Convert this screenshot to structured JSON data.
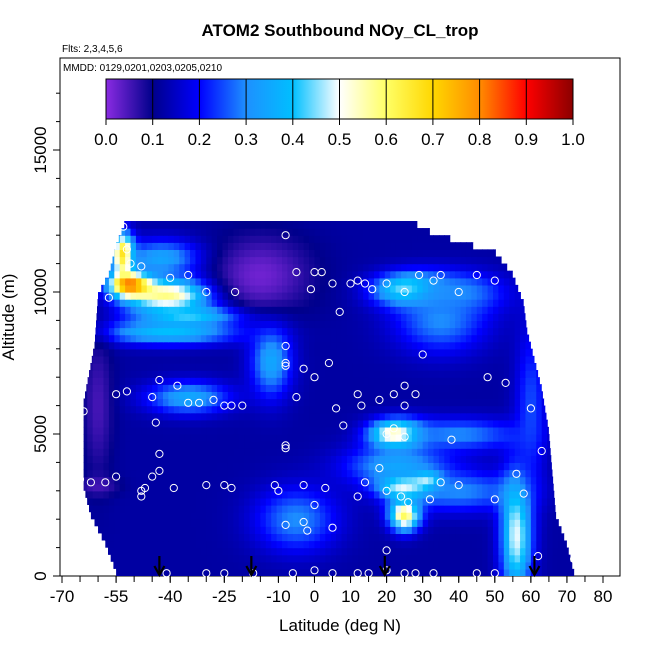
{
  "chart_data": {
    "type": "heatmap",
    "title": "ATOM2 Southbound NOy_CL_trop",
    "subtitle_lines": [
      "Flts: 2,3,4,5,6",
      "MMDD: 0129,0201,0203,0205,0210"
    ],
    "xlabel": "Latitude (deg N)",
    "ylabel": "Altitude (m)",
    "xlim": [
      -70,
      85
    ],
    "ylim": [
      0,
      17500
    ],
    "x_ticks": [
      -70,
      -55,
      -40,
      -25,
      -10,
      0,
      10,
      20,
      30,
      40,
      50,
      60,
      70,
      80
    ],
    "x_tick_labels": [
      "-70",
      "-55",
      "-40",
      "-25",
      "-10",
      "0",
      "10",
      "20",
      "30",
      "40",
      "50",
      "60",
      "70",
      "80"
    ],
    "y_ticks": [
      0,
      5000,
      10000,
      15000
    ],
    "y_tick_labels": [
      "0",
      "5000",
      "10000",
      "15000"
    ],
    "colorbar": {
      "range": [
        0.0,
        1.0
      ],
      "ticks": [
        0.0,
        0.1,
        0.2,
        0.3,
        0.4,
        0.5,
        0.6,
        0.7,
        0.8,
        0.9,
        1.0
      ],
      "tick_labels": [
        "0.0",
        "0.1",
        "0.2",
        "0.3",
        "0.4",
        "0.5",
        "0.6",
        "0.7",
        "0.8",
        "0.9",
        "1.0"
      ],
      "colors": [
        "#8a2be2",
        "#00008b",
        "#0000ff",
        "#1e90ff",
        "#00bfff",
        "#ffffff",
        "#ffff66",
        "#ffd700",
        "#ff8c00",
        "#ff0000",
        "#8b0000"
      ]
    },
    "envelope": {
      "left_x_by_alt": [
        [
          0,
          -55
        ],
        [
          1000,
          -58
        ],
        [
          2000,
          -62
        ],
        [
          3000,
          -64
        ],
        [
          6000,
          -64
        ],
        [
          8000,
          -61
        ],
        [
          9800,
          -60
        ],
        [
          10500,
          -57
        ],
        [
          11500,
          -55
        ],
        [
          12500,
          -52
        ]
      ],
      "right_x_by_alt": [
        [
          0,
          72
        ],
        [
          1000,
          70
        ],
        [
          2000,
          67
        ],
        [
          3500,
          66
        ],
        [
          5000,
          65
        ],
        [
          6500,
          63
        ],
        [
          7500,
          61
        ],
        [
          8500,
          59
        ],
        [
          9500,
          58
        ],
        [
          10500,
          55
        ],
        [
          11300,
          50
        ],
        [
          11600,
          41
        ],
        [
          12000,
          32
        ],
        [
          12500,
          25
        ]
      ]
    },
    "field": {
      "background_value": 0.12,
      "features": [
        {
          "x": -40,
          "y": 9900,
          "sx": 9,
          "sy": 450,
          "v": 0.6
        },
        {
          "x": -51,
          "y": 10300,
          "sx": 4,
          "sy": 300,
          "v": 0.88
        },
        {
          "x": -53,
          "y": 11300,
          "sx": 2,
          "sy": 500,
          "v": 0.85
        },
        {
          "x": -40,
          "y": 8600,
          "sx": 14,
          "sy": 300,
          "v": 0.4
        },
        {
          "x": -33,
          "y": 9200,
          "sx": 10,
          "sy": 250,
          "v": 0.45
        },
        {
          "x": -42,
          "y": 11200,
          "sx": 8,
          "sy": 450,
          "v": 0.35
        },
        {
          "x": -35,
          "y": 6300,
          "sx": 8,
          "sy": 400,
          "v": 0.35
        },
        {
          "x": -12,
          "y": 7600,
          "sx": 4,
          "sy": 900,
          "v": 0.35
        },
        {
          "x": 26,
          "y": 3200,
          "sx": 5,
          "sy": 300,
          "v": 0.8
        },
        {
          "x": 31,
          "y": 3350,
          "sx": 2.5,
          "sy": 200,
          "v": 0.95
        },
        {
          "x": 25,
          "y": 2200,
          "sx": 3,
          "sy": 400,
          "v": 0.65
        },
        {
          "x": 23,
          "y": 5000,
          "sx": 5,
          "sy": 350,
          "v": 0.7
        },
        {
          "x": 23,
          "y": 3900,
          "sx": 10,
          "sy": 500,
          "v": 0.35
        },
        {
          "x": 40,
          "y": 5000,
          "sx": 12,
          "sy": 400,
          "v": 0.3
        },
        {
          "x": 40,
          "y": 3000,
          "sx": 12,
          "sy": 500,
          "v": 0.3
        },
        {
          "x": 56,
          "y": 1500,
          "sx": 3,
          "sy": 1500,
          "v": 0.5
        },
        {
          "x": 60,
          "y": 6000,
          "sx": 3,
          "sy": 2000,
          "v": 0.25
        },
        {
          "x": 27,
          "y": 10100,
          "sx": 7,
          "sy": 400,
          "v": 0.55
        },
        {
          "x": 40,
          "y": 10000,
          "sx": 9,
          "sy": 500,
          "v": 0.3
        },
        {
          "x": 35,
          "y": 9000,
          "sx": 9,
          "sy": 800,
          "v": 0.3
        },
        {
          "x": -60,
          "y": 6000,
          "sx": 3,
          "sy": 1800,
          "v": 0.05
        },
        {
          "x": -15,
          "y": 10600,
          "sx": 10,
          "sy": 1000,
          "v": 0.02
        },
        {
          "x": -60,
          "y": 3200,
          "sx": 4,
          "sy": 250,
          "v": 0.05
        },
        {
          "x": -5,
          "y": 2000,
          "sx": 8,
          "sy": 800,
          "v": 0.3
        }
      ]
    },
    "observations": [
      [
        -53,
        12300
      ],
      [
        -52,
        11500
      ],
      [
        -51,
        11000
      ],
      [
        -48,
        10900
      ],
      [
        -40,
        10500
      ],
      [
        -35,
        10600
      ],
      [
        -30,
        10000
      ],
      [
        -22,
        10000
      ],
      [
        -8,
        12000
      ],
      [
        -5,
        10700
      ],
      [
        0,
        10700
      ],
      [
        2,
        10700
      ],
      [
        -1,
        10100
      ],
      [
        5,
        10300
      ],
      [
        7,
        9300
      ],
      [
        10,
        10300
      ],
      [
        12,
        10400
      ],
      [
        14,
        10300
      ],
      [
        16,
        10100
      ],
      [
        20,
        10300
      ],
      [
        25,
        10000
      ],
      [
        29,
        10600
      ],
      [
        33,
        10400
      ],
      [
        35,
        10600
      ],
      [
        40,
        10000
      ],
      [
        45,
        10600
      ],
      [
        50,
        10400
      ],
      [
        -57,
        9800
      ],
      [
        -8,
        8100
      ],
      [
        -8,
        7500
      ],
      [
        -8,
        7400
      ],
      [
        -3,
        7300
      ],
      [
        4,
        7500
      ],
      [
        0,
        7000
      ],
      [
        30,
        7800
      ],
      [
        25,
        6700
      ],
      [
        48,
        7000
      ],
      [
        53,
        6800
      ],
      [
        -55,
        6400
      ],
      [
        -52,
        6500
      ],
      [
        -45,
        6300
      ],
      [
        -43,
        6900
      ],
      [
        -38,
        6700
      ],
      [
        -35,
        6100
      ],
      [
        -32,
        6100
      ],
      [
        -28,
        6200
      ],
      [
        -25,
        6000
      ],
      [
        -23,
        6000
      ],
      [
        -20,
        6000
      ],
      [
        -5,
        6300
      ],
      [
        6,
        5900
      ],
      [
        12,
        6400
      ],
      [
        18,
        6200
      ],
      [
        13,
        6000
      ],
      [
        22,
        6400
      ],
      [
        25,
        6000
      ],
      [
        28,
        6400
      ],
      [
        -64,
        5800
      ],
      [
        -44,
        5400
      ],
      [
        8,
        5300
      ],
      [
        20,
        5000
      ],
      [
        22,
        5200
      ],
      [
        25,
        4900
      ],
      [
        38,
        4800
      ],
      [
        60,
        5900
      ],
      [
        63,
        4400
      ],
      [
        -8,
        4600
      ],
      [
        -8,
        4500
      ],
      [
        -43,
        4300
      ],
      [
        -43,
        3700
      ],
      [
        -45,
        3500
      ],
      [
        -55,
        3500
      ],
      [
        -58,
        3300
      ],
      [
        -62,
        3300
      ],
      [
        -65,
        3400
      ],
      [
        -48,
        3000
      ],
      [
        -47,
        3100
      ],
      [
        -39,
        3100
      ],
      [
        -30,
        3200
      ],
      [
        -25,
        3200
      ],
      [
        -23,
        3100
      ],
      [
        -11,
        3200
      ],
      [
        -10,
        3000
      ],
      [
        0,
        2500
      ],
      [
        -3,
        3200
      ],
      [
        3,
        3100
      ],
      [
        12,
        2800
      ],
      [
        14,
        3300
      ],
      [
        18,
        3800
      ],
      [
        20,
        3000
      ],
      [
        24,
        2800
      ],
      [
        26,
        2600
      ],
      [
        32,
        2700
      ],
      [
        35,
        3300
      ],
      [
        40,
        3200
      ],
      [
        50,
        2700
      ],
      [
        56,
        3600
      ],
      [
        58,
        2900
      ],
      [
        -48,
        2800
      ],
      [
        -2,
        1600
      ],
      [
        -3,
        1900
      ],
      [
        -8,
        1800
      ],
      [
        5,
        1700
      ],
      [
        20,
        900
      ],
      [
        -41,
        100
      ],
      [
        -30,
        100
      ],
      [
        -25,
        100
      ],
      [
        -17,
        100
      ],
      [
        -6,
        100
      ],
      [
        0,
        200
      ],
      [
        5,
        100
      ],
      [
        12,
        100
      ],
      [
        15,
        100
      ],
      [
        20,
        200
      ],
      [
        25,
        100
      ],
      [
        28,
        100
      ],
      [
        33,
        100
      ],
      [
        45,
        100
      ],
      [
        50,
        100
      ],
      [
        62,
        700
      ],
      [
        72,
        600
      ]
    ],
    "arrow_latitudes": [
      -43,
      -17.5,
      19.5,
      61
    ]
  }
}
